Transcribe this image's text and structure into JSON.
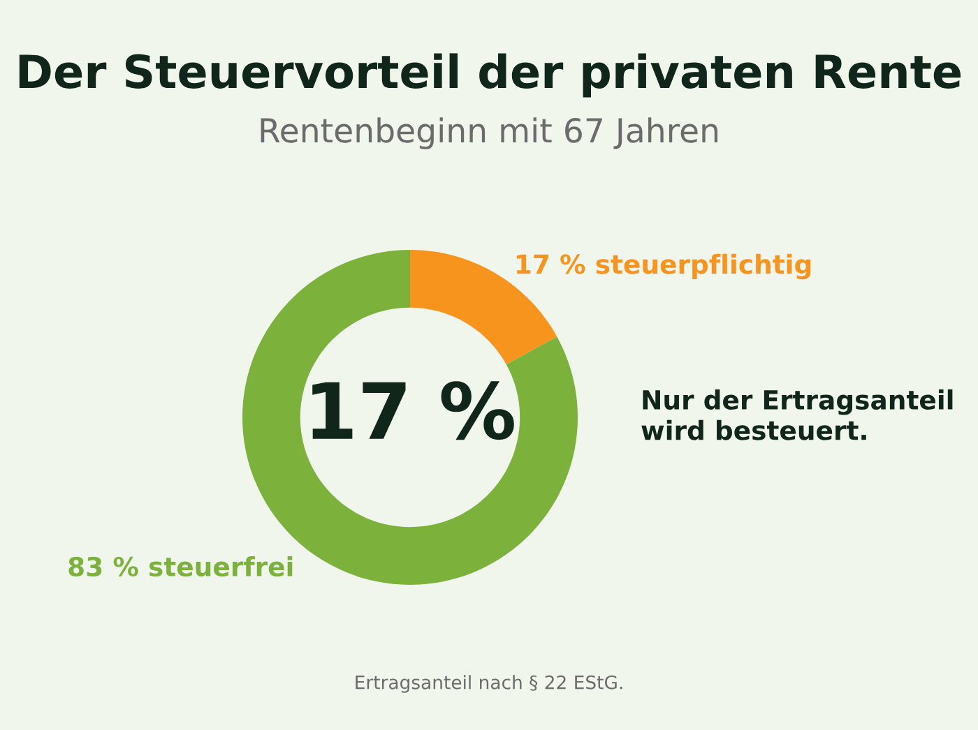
{
  "chart_data": {
    "type": "donut",
    "title": "Der Steuervorteil der privaten Rente",
    "subtitle": "Rentenbeginn mit 67 Jahren",
    "categories": [
      "17 % steuerpflichtig",
      "83 % steuerfrei"
    ],
    "values": [
      17,
      83
    ],
    "colors": [
      "#f7941d",
      "#7cb13c"
    ],
    "annotations": [
      "17 %",
      "Nur der Ertragsanteil\nwird besteuert.",
      "Ertragsanteil nach § 22 EStG."
    ]
  }
}
